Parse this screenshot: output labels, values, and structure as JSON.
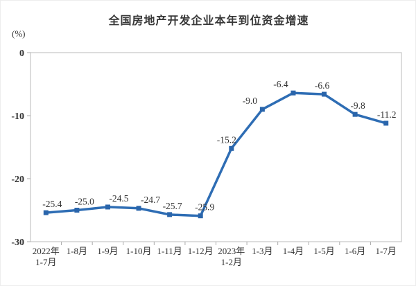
{
  "title": "全国房地产开发企业本年到位资金增速",
  "unit_label": "(%)",
  "chart_data": {
    "type": "line",
    "title": "全国房地产开发企业本年到位资金增速",
    "ylabel": "(%)",
    "xlabel": "",
    "categories": [
      [
        "2022年",
        "1-7月"
      ],
      [
        "1-8月"
      ],
      [
        "1-9月"
      ],
      [
        "1-10月"
      ],
      [
        "1-11月"
      ],
      [
        "1-12月"
      ],
      [
        "2023年",
        "1-2月"
      ],
      [
        "1-3月"
      ],
      [
        "1-4月"
      ],
      [
        "1-5月"
      ],
      [
        "1-6月"
      ],
      [
        "1-7月"
      ]
    ],
    "values": [
      -25.4,
      -25.0,
      -24.5,
      -24.7,
      -25.7,
      -25.9,
      -15.2,
      -9.0,
      -6.4,
      -6.6,
      -9.8,
      -11.2
    ],
    "data_labels": [
      "-25.4",
      "-25.0",
      "-24.5",
      "-24.7",
      "-25.7",
      "-25.9",
      "-15.2",
      "-9.0",
      "-6.4",
      "-6.6",
      "-9.8",
      "-11.2"
    ],
    "ylim": [
      -30,
      0
    ],
    "yticks": [
      0,
      -10,
      -20,
      -30
    ],
    "grid": false,
    "legend": "none",
    "line_color": "#2e6db4",
    "marker": "square",
    "marker_color": "#2a65ab",
    "axis_box_color": "#c6c6c6",
    "tick_color": "#aaaaaa",
    "text_color": "#333333",
    "label_offsets_x": [
      9,
      11,
      16,
      17,
      4,
      6,
      -7,
      -18,
      -18,
      -3,
      4,
      1
    ],
    "label_offset_y": -8
  }
}
